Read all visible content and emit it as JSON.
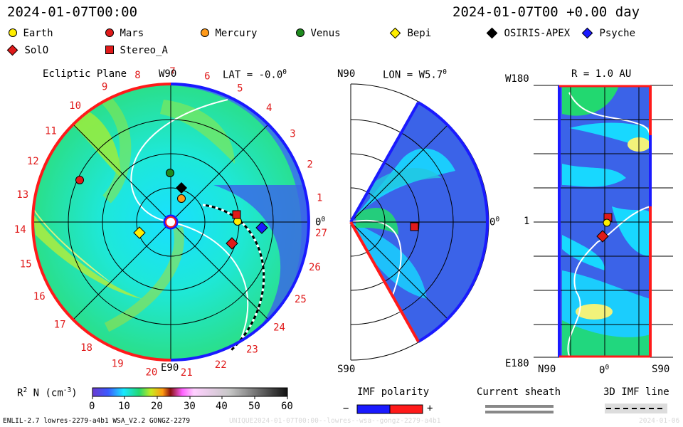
{
  "header": {
    "time_left": "2024-01-07T00:00",
    "time_right": "2024-01-07T00 +0.00 day"
  },
  "legend": [
    {
      "label": "Earth",
      "shape": "circle",
      "color": "#ffee00"
    },
    {
      "label": "Mars",
      "shape": "circle",
      "color": "#e01a1a"
    },
    {
      "label": "Mercury",
      "shape": "circle",
      "color": "#ff9a1a"
    },
    {
      "label": "Venus",
      "shape": "circle",
      "color": "#1e8a1e"
    },
    {
      "label": "Bepi",
      "shape": "diamond",
      "color": "#ffee00"
    },
    {
      "label": "OSIRIS-APEX",
      "shape": "diamond",
      "color": "#000000"
    },
    {
      "label": "Psyche",
      "shape": "diamond",
      "color": "#1a1aff"
    },
    {
      "label": "SolO",
      "shape": "diamond",
      "color": "#e01a1a"
    },
    {
      "label": "Stereo_A",
      "shape": "square",
      "color": "#e01a1a"
    }
  ],
  "panel_ecliptic": {
    "title": "Ecliptic Plane",
    "top_label": "W90",
    "lat_label": "LAT = -0.0",
    "lat_unit": "0",
    "bottom_label": "E90",
    "right_label": "0",
    "right_unit": "0",
    "sector_numbers": [
      "1",
      "2",
      "3",
      "4",
      "5",
      "6",
      "7",
      "8",
      "9",
      "10",
      "11",
      "12",
      "13",
      "14",
      "15",
      "16",
      "17",
      "18",
      "19",
      "20",
      "21",
      "22",
      "23",
      "24",
      "25",
      "26",
      "27"
    ]
  },
  "panel_meridional": {
    "top_left": "N90",
    "lon_label": "LON = W5.7",
    "lon_unit": "0",
    "right_label": "0",
    "right_unit": "0",
    "bottom_left": "S90"
  },
  "panel_radial": {
    "title": "R = 1.0 AU",
    "top_left": "W180",
    "mid_left": "1",
    "bottom_left": "E180",
    "x_left": "N90",
    "x_mid": "0",
    "x_mid_unit": "0",
    "x_right": "S90"
  },
  "colorbar": {
    "label_prefix": "R",
    "label_sup": "2",
    "label_mid": " N (cm",
    "label_sup2": "-3",
    "label_suffix": ")",
    "ticks": [
      "0",
      "10",
      "20",
      "30",
      "40",
      "50",
      "60"
    ],
    "range": [
      0,
      60
    ]
  },
  "imf_polarity": {
    "title": "IMF polarity",
    "minus": "−",
    "plus": "+",
    "neg_color": "#1a1aff",
    "pos_color": "#ff1a1a"
  },
  "current_sheath": {
    "title": "Current sheath"
  },
  "imf_line": {
    "title": "3D IMF line"
  },
  "footer": {
    "model": "ENLIL-2.7 lowres-2279-a4b1 WSA_V2.2 GONGZ-2279",
    "id_text": "UNIQUE2024-01-07T00:00--lowres--wsa--gongz-2279-a4b1",
    "date_text": "2024-01-06"
  }
}
